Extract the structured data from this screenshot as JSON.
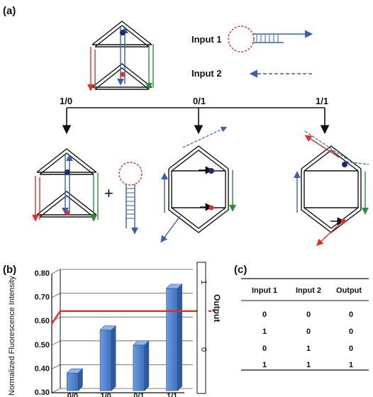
{
  "panel_a": {
    "label": "(a)",
    "input1_label": "Input 1",
    "input2_label": "Input 2",
    "branches": [
      "1/0",
      "0/1",
      "1/1"
    ],
    "plus_sign": "+",
    "strand_colors": {
      "red": "#e0302a",
      "blue": "#3a5fb0",
      "green": "#2e8b3a",
      "black": "#111111"
    }
  },
  "panel_b": {
    "label": "(b)",
    "y_axis_label": "Normalized Fluorescence Intensity",
    "right_axis_label": "Output",
    "right_ticks": [
      "1",
      "0"
    ],
    "bar_color": "#4a7fc8",
    "threshold_color": "#e03020"
  },
  "chart_data": {
    "type": "bar",
    "categories": [
      "0/0",
      "1/0",
      "0/1",
      "1/1"
    ],
    "values": [
      0.365,
      0.545,
      0.482,
      0.72
    ],
    "yticks": [
      "0.30",
      "0.40",
      "0.50",
      "0.60",
      "0.70",
      "0.80"
    ],
    "ylim": [
      0.3,
      0.8
    ],
    "threshold": 0.625,
    "grid": true
  },
  "panel_c": {
    "label": "(c)",
    "headers": [
      "Input 1",
      "Input 2",
      "Output"
    ],
    "rows": [
      [
        "0",
        "0",
        "0"
      ],
      [
        "1",
        "0",
        "0"
      ],
      [
        "0",
        "1",
        "0"
      ],
      [
        "1",
        "1",
        "1"
      ]
    ]
  }
}
